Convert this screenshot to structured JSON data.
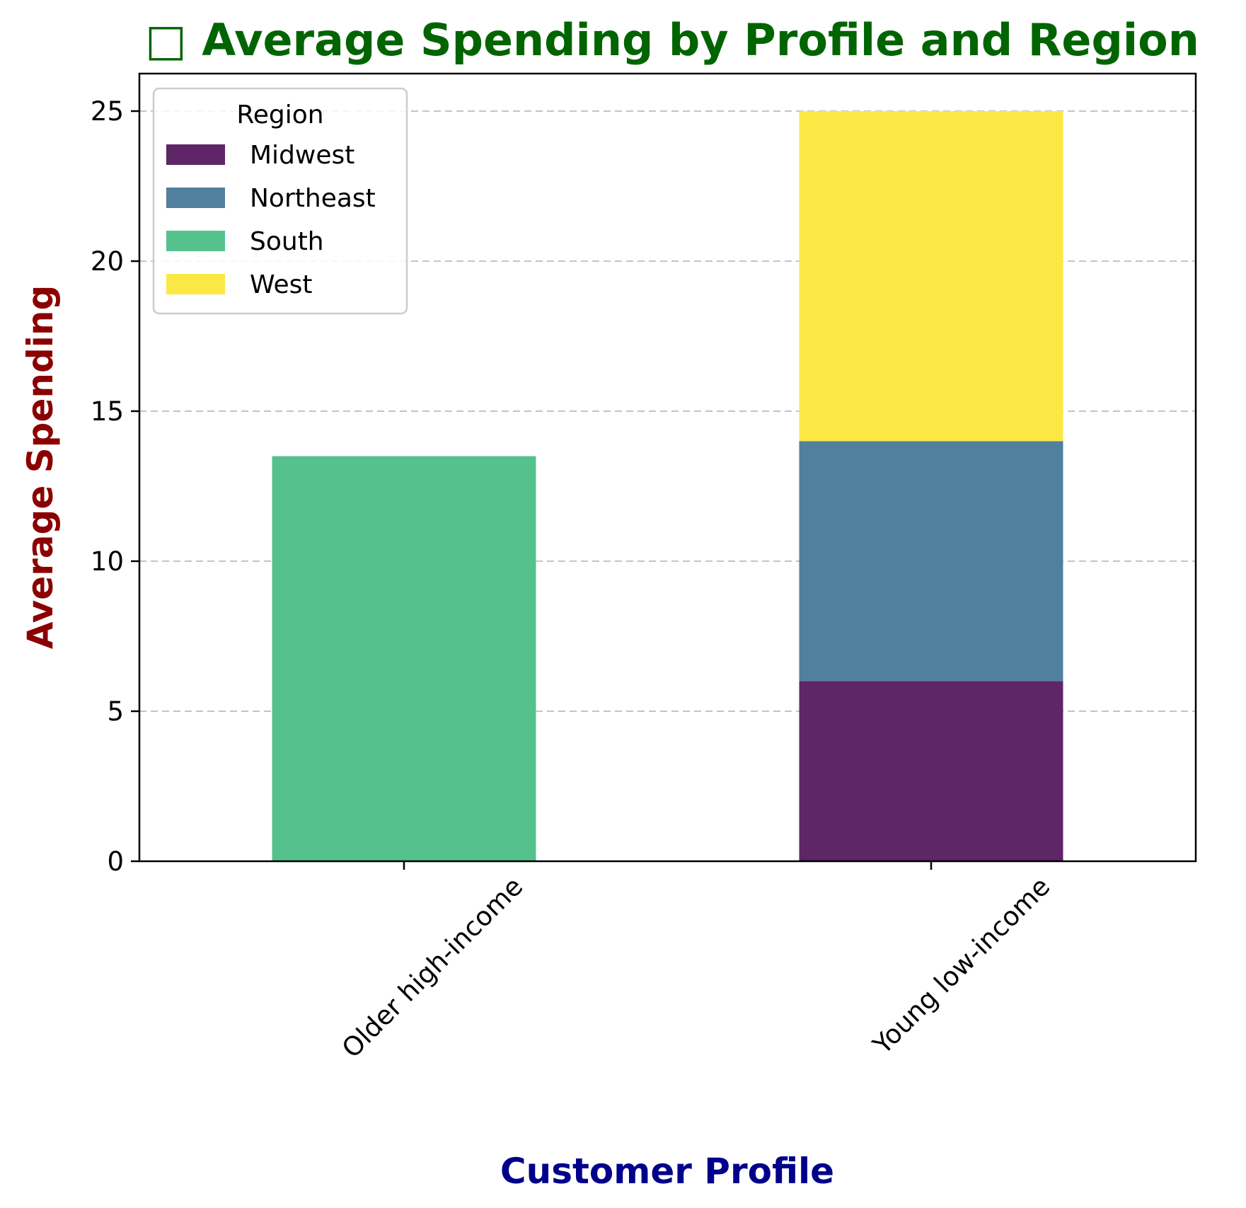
{
  "chart_data": {
    "type": "bar",
    "stacked": true,
    "title": "□ Average Spending by Profile and Region",
    "xlabel": "Customer Profile",
    "ylabel": "Average Spending",
    "categories": [
      "Older high-income",
      "Young low-income"
    ],
    "series": [
      {
        "name": "Midwest",
        "color": "#5e2567",
        "values": [
          0,
          6
        ]
      },
      {
        "name": "Northeast",
        "color": "#517f9e",
        "values": [
          0,
          8
        ]
      },
      {
        "name": "South",
        "color": "#55c28d",
        "values": [
          13.5,
          0
        ]
      },
      {
        "name": "West",
        "color": "#fce845",
        "values": [
          0,
          11
        ]
      }
    ],
    "ylim": [
      0,
      26.25
    ],
    "yticks": [
      0,
      5,
      10,
      15,
      20,
      25
    ],
    "grid": "y-dashed",
    "legend": {
      "title": "Region",
      "position": "top-left"
    },
    "colors": {
      "title": "#006400",
      "xlabel": "#00008b",
      "ylabel": "#8b0000"
    }
  }
}
